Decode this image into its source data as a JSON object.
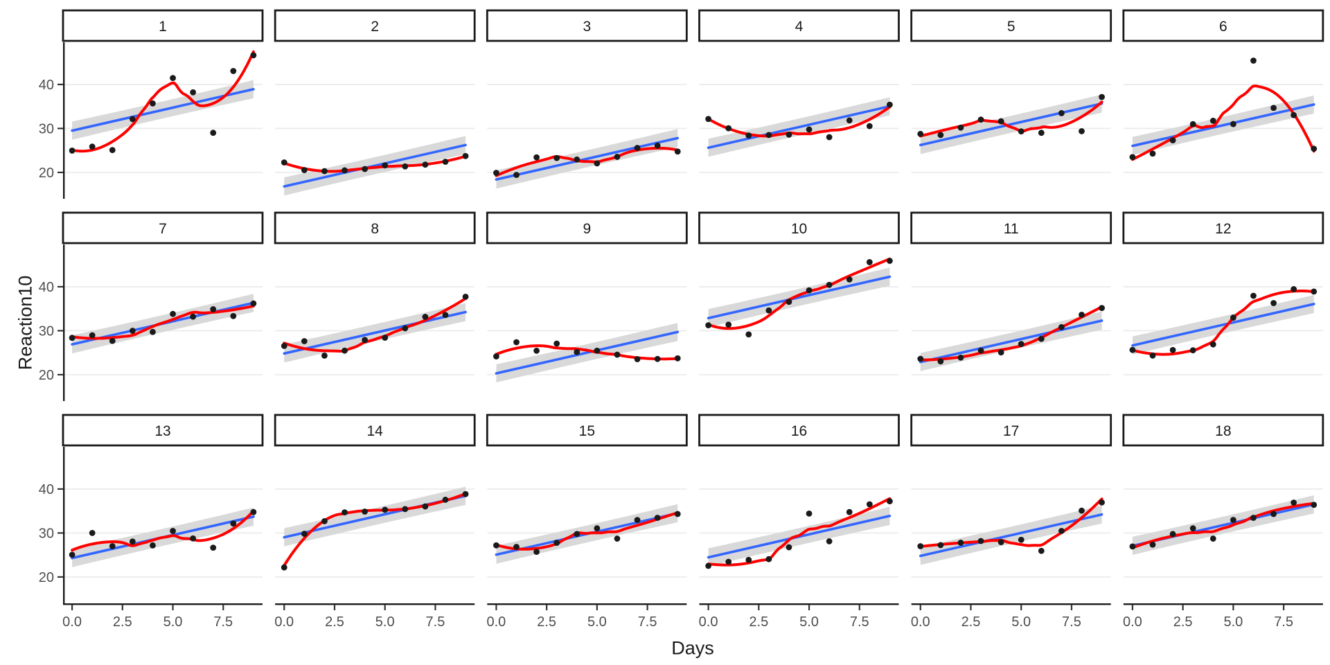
{
  "chart_data": {
    "type": "scatter",
    "description": "Faceted scatter plot with per-facet loess smoother (red), common-slope linear fit (blue) and gray confidence band",
    "xlabel": "Days",
    "ylabel": "Reaction10",
    "facet_labels": [
      "1",
      "2",
      "3",
      "4",
      "5",
      "6",
      "7",
      "8",
      "9",
      "10",
      "11",
      "12",
      "13",
      "14",
      "15",
      "16",
      "17",
      "18"
    ],
    "x": [
      0,
      1,
      2,
      3,
      4,
      5,
      6,
      7,
      8,
      9
    ],
    "facets": [
      {
        "label": "1",
        "values": [
          24.96,
          25.87,
          25.08,
          32.14,
          35.69,
          41.47,
          38.22,
          29.01,
          43.06,
          46.64
        ]
      },
      {
        "label": "2",
        "values": [
          22.27,
          20.53,
          20.3,
          20.47,
          20.77,
          21.6,
          21.36,
          21.77,
          22.43,
          23.73
        ]
      },
      {
        "label": "3",
        "values": [
          19.91,
          19.43,
          23.43,
          23.28,
          22.93,
          22.05,
          23.54,
          25.58,
          26.1,
          24.75
        ]
      },
      {
        "label": "4",
        "values": [
          32.15,
          30.04,
          28.39,
          28.51,
          28.58,
          29.76,
          28.02,
          31.83,
          30.53,
          35.4
        ]
      },
      {
        "label": "5",
        "values": [
          28.76,
          28.5,
          30.18,
          32.01,
          31.63,
          29.33,
          29.01,
          33.48,
          29.37,
          37.16
        ]
      },
      {
        "label": "6",
        "values": [
          23.49,
          24.28,
          27.3,
          30.98,
          31.75,
          31.0,
          45.42,
          34.68,
          33.03,
          25.39
        ]
      },
      {
        "label": "7",
        "values": [
          28.38,
          28.96,
          27.68,
          29.98,
          29.72,
          33.82,
          33.2,
          34.88,
          33.34,
          36.2
        ]
      },
      {
        "label": "8",
        "values": [
          26.55,
          27.62,
          24.34,
          25.47,
          27.9,
          28.42,
          30.55,
          33.15,
          33.57,
          37.73
        ]
      },
      {
        "label": "9",
        "values": [
          24.16,
          27.39,
          25.45,
          27.08,
          25.15,
          25.46,
          24.55,
          23.53,
          23.58,
          23.72
        ]
      },
      {
        "label": "10",
        "values": [
          31.24,
          31.38,
          29.16,
          34.61,
          36.57,
          39.18,
          40.43,
          41.67,
          45.59,
          45.89
        ]
      },
      {
        "label": "11",
        "values": [
          23.61,
          23.03,
          23.89,
          25.49,
          25.07,
          26.98,
          28.16,
          30.81,
          33.63,
          35.16
        ]
      },
      {
        "label": "12",
        "values": [
          25.63,
          24.35,
          25.62,
          25.55,
          26.89,
          32.97,
          37.94,
          36.29,
          39.45,
          38.91
        ]
      },
      {
        "label": "13",
        "values": [
          25.05,
          30.01,
          26.99,
          28.06,
          27.18,
          30.46,
          28.77,
          26.66,
          32.15,
          34.76
        ]
      },
      {
        "label": "14",
        "values": [
          22.17,
          29.82,
          32.69,
          34.69,
          34.87,
          35.28,
          35.44,
          36.04,
          37.56,
          38.85
        ]
      },
      {
        "label": "15",
        "values": [
          27.19,
          26.84,
          25.72,
          27.77,
          29.76,
          31.06,
          28.72,
          32.96,
          33.45,
          34.32
        ]
      },
      {
        "label": "16",
        "values": [
          22.53,
          23.45,
          23.89,
          24.05,
          26.75,
          34.42,
          28.11,
          34.76,
          36.52,
          37.22
        ]
      },
      {
        "label": "17",
        "values": [
          26.99,
          27.24,
          27.79,
          28.18,
          27.92,
          28.45,
          25.93,
          30.46,
          35.08,
          36.95
        ]
      },
      {
        "label": "18",
        "values": [
          26.94,
          27.35,
          29.76,
          31.06,
          28.72,
          32.96,
          33.45,
          34.32,
          36.91,
          36.41
        ]
      }
    ],
    "x_ticks": {
      "values": [
        0,
        2.5,
        5,
        7.5
      ],
      "labels": [
        "0.0",
        "2.5",
        "5.0",
        "7.5"
      ]
    },
    "y_ticks": {
      "values": [
        20,
        30,
        40
      ],
      "labels": [
        "20",
        "30",
        "40"
      ]
    },
    "x_range": [
      -0.45,
      9.45
    ],
    "y_range": [
      14.0,
      49.6
    ],
    "grid": "horizontal-major-only",
    "legend": "none",
    "smoothers": {
      "linear_common_slope": 1.0467,
      "band_halfwidth": {
        "t": 1.975,
        "sigma": 3.105,
        "n_per_facet": 10,
        "x_mean": 4.5,
        "sxx_total": 1485
      },
      "loess": {
        "span": 0.75,
        "degree": 2,
        "neighbors": 7
      }
    },
    "colors": {
      "points": "#1a1a1a",
      "linear_line": "#3366FF",
      "loess_line": "#FF0000",
      "band": "#D9D9D9",
      "gridline": "#EDEDED",
      "axis_line": "#1a1a1a",
      "tick_mark": "#333333",
      "tick_label": "#4d4d4d",
      "strip_fill": "#FFFFFF",
      "strip_border": "#1a1a1a",
      "strip_text": "#1a1a1a",
      "background": "#FFFFFF",
      "title_text": "#1a1a1a"
    }
  }
}
